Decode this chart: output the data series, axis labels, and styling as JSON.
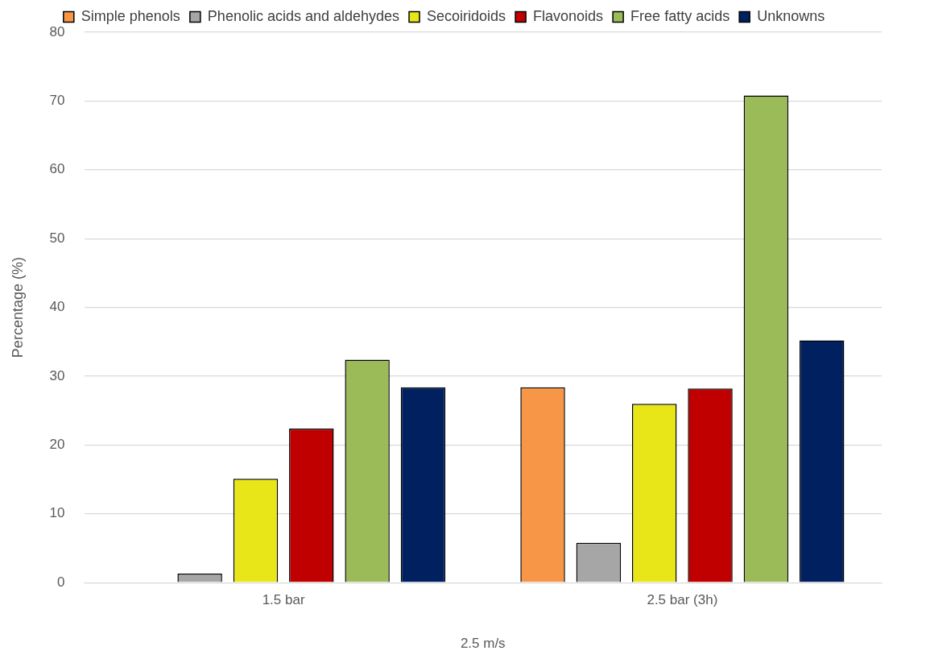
{
  "chart_data": {
    "type": "bar",
    "ylabel": "Percentage (%)",
    "xlabel": "2.5 m/s",
    "categories": [
      "1.5 bar",
      "2.5 bar (3h)"
    ],
    "series": [
      {
        "name": "Simple phenols",
        "color": "#f79646",
        "values": [
          null,
          28.4
        ]
      },
      {
        "name": "Phenolic acids and aldehydes",
        "color": "#a6a6a6",
        "values": [
          1.3,
          5.8
        ]
      },
      {
        "name": "Secoiridoids",
        "color": "#e8e619",
        "values": [
          15.1,
          26.0
        ]
      },
      {
        "name": "Flavonoids",
        "color": "#c00000",
        "values": [
          22.4,
          28.2
        ]
      },
      {
        "name": "Free fatty acids",
        "color": "#9bbb59",
        "values": [
          32.4,
          70.8
        ]
      },
      {
        "name": "Unknowns",
        "color": "#002060",
        "values": [
          28.4,
          35.2
        ]
      }
    ],
    "ylim": [
      0,
      80
    ],
    "yticks": [
      0,
      10,
      20,
      30,
      40,
      50,
      60,
      70,
      80
    ],
    "grid": "y",
    "legend": "top"
  }
}
